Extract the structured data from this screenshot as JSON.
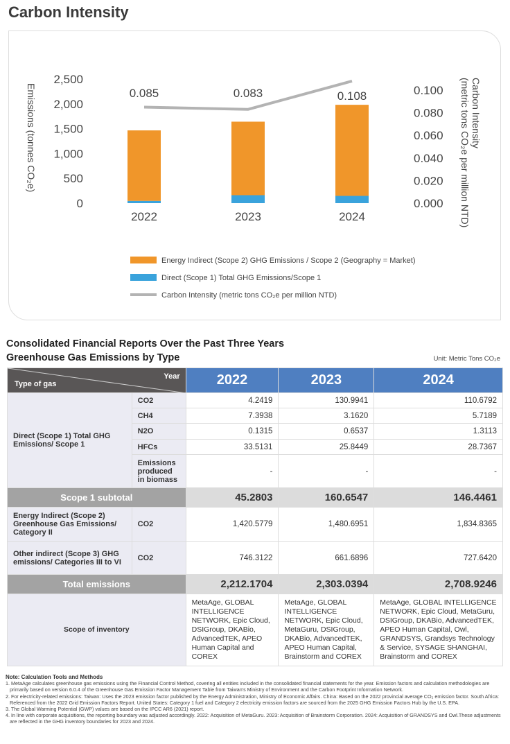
{
  "title": "Carbon Intensity",
  "chart_data": {
    "type": "bar",
    "categories": [
      "2022",
      "2023",
      "2024"
    ],
    "series": [
      {
        "name": "Direct (Scope 1) Total GHG Emissions/Scope 1",
        "kind": "bar",
        "color": "#3aa3dc",
        "values": [
          45.2803,
          160.6547,
          146.4461
        ]
      },
      {
        "name": "Energy Indirect (Scope 2) GHG Emissions / Scope 2 (Geography = Market)",
        "kind": "bar",
        "color": "#f0962a",
        "values": [
          1420.5779,
          1480.6951,
          1834.8365
        ]
      },
      {
        "name": "Carbon Intensity (metric tons CO₂e per million NTD)",
        "kind": "line",
        "axis": "right",
        "color": "#b3b3b3",
        "values": [
          0.085,
          0.083,
          0.108
        ],
        "labels": [
          "0.085",
          "0.083",
          "0.108"
        ]
      }
    ],
    "ylabel": "Emissions (tonnes CO₂e)",
    "y2label": "Carbon Intensity (metric tons CO₂e per million NTD)",
    "ylim": [
      0,
      2500
    ],
    "y2lim": [
      0,
      0.1
    ],
    "yticks": [
      "0",
      "500",
      "1,000",
      "1,500",
      "2,000",
      "2,500"
    ],
    "y2ticks": [
      "0.000",
      "0.020",
      "0.040",
      "0.060",
      "0.080",
      "0.100"
    ],
    "legend": "bottom"
  },
  "table": {
    "heading1": "Consolidated Financial Reports Over the Past Three Years",
    "heading2": "Greenhouse Gas Emissions by Type",
    "unit": "Unit: Metric Tons CO₂e",
    "corner_year": "Year",
    "corner_type": "Type of gas",
    "years": [
      "2022",
      "2023",
      "2024"
    ],
    "scope1_label": "Direct (Scope 1) Total GHG Emissions/ Scope 1",
    "scope1_rows": [
      {
        "gas": "CO2",
        "values": [
          "4.2419",
          "130.9941",
          "110.6792"
        ]
      },
      {
        "gas": "CH4",
        "values": [
          "7.3938",
          "3.1620",
          "5.7189"
        ]
      },
      {
        "gas": "N2O",
        "values": [
          "0.1315",
          "0.6537",
          "1.3113"
        ]
      },
      {
        "gas": "HFCs",
        "values": [
          "33.5131",
          "25.8449",
          "28.7367"
        ]
      },
      {
        "gas": "Emissions produced in biomass",
        "values": [
          "-",
          "-",
          "-"
        ]
      }
    ],
    "subtotal": {
      "label": "Scope 1 subtotal",
      "values": [
        "45.2803",
        "160.6547",
        "146.4461"
      ]
    },
    "scope2": {
      "label": "Energy Indirect (Scope 2) Greenhouse Gas Emissions/ Category II",
      "gas": "CO2",
      "values": [
        "1,420.5779",
        "1,480.6951",
        "1,834.8365"
      ]
    },
    "scope3": {
      "label": "Other indirect (Scope 3) GHG emissions/ Categories III to VI",
      "gas": "CO2",
      "values": [
        "746.3122",
        "661.6896",
        "727.6420"
      ]
    },
    "total": {
      "label": "Total emissions",
      "values": [
        "2,212.1704",
        "2,303.0394",
        "2,708.9246"
      ]
    },
    "inventory": {
      "label": "Scope of inventory",
      "values": [
        "MetaAge, GLOBAL INTELLIGENCE NETWORK, Epic Cloud, DSIGroup, DKABio, AdvancedTEK, APEO Human Capital and COREX",
        "MetaAge, GLOBAL INTELLIGENCE NETWORK, Epic Cloud, MetaGuru, DSIGroup, DKABio, AdvancedTEK, APEO Human Capital, Brainstorm and COREX",
        "MetaAge, GLOBAL INTELLIGENCE NETWORK, Epic Cloud, MetaGuru, DSIGroup, DKABio, AdvancedTEK, APEO Human Capital, Owl, GRANDSYS, Grandsys Technology & Service, SYSAGE SHANGHAI, Brainstorm  and COREX"
      ]
    }
  },
  "notes": {
    "title": "Note: Calculation Tools and Methods",
    "items": [
      "1. MetaAge calculates greenhouse gas emissions using the Financial Control Method, covering all entities included in the consolidated financial statements for the year. Emission factors and calculation methodologies are primarily based on version 6.0.4 of the Greenhouse Gas Emission Factor Management Table from Taiwan's Ministry of Environment and the Carbon Footprint Information Network.",
      "2. For electricity-related emissions: Taiwan: Uses the 2023 emission factor published by the Energy Administration, Ministry of Economic Affairs. China: Based on the 2022 provincial average CO₂ emission factor. South Africa: Referenced from the 2022 Grid Emission Factors Report. United States: Category 1 fuel and Category 2 electricity emission factors are sourced from the 2025 GHG Emission Factors Hub by the U.S. EPA.",
      "3. The Global Warming Potential (GWP) values are based on the IPCC AR6 (2021) report.",
      "4. In line with corporate acquisitions, the reporting boundary was adjusted accordingly. 2022: Acquisition of MetaGuru. 2023: Acquisition of Brainstorm Corporation. 2024: Acquisition of GRANDSYS and Owl.These adjustments are reflected in the GHG inventory boundaries for 2023 and 2024."
    ]
  }
}
